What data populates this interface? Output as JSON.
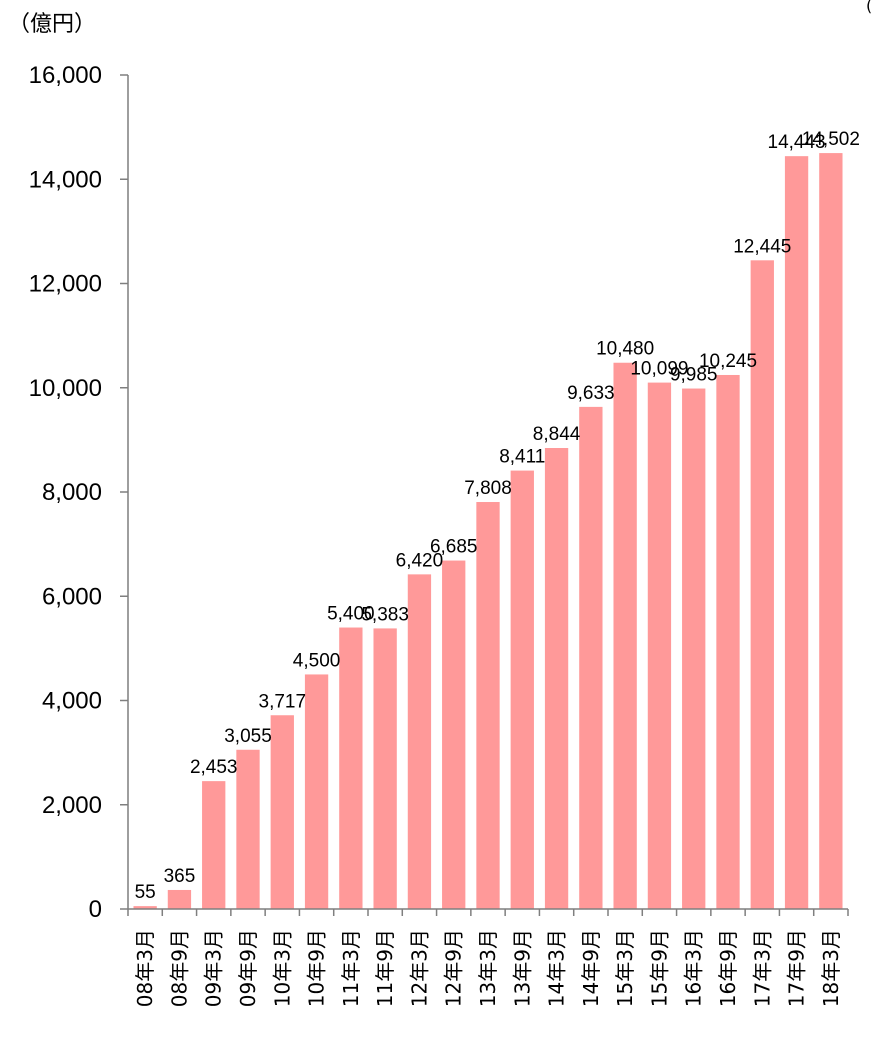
{
  "chart_data": {
    "type": "bar",
    "ylabel": "（億円）",
    "corner_mark": "(",
    "ylim": [
      0,
      16000
    ],
    "yticks": [
      0,
      2000,
      4000,
      6000,
      8000,
      10000,
      12000,
      14000,
      16000
    ],
    "ytick_labels": [
      "0",
      "2,000",
      "4,000",
      "6,000",
      "8,000",
      "10,000",
      "12,000",
      "14,000",
      "16,000"
    ],
    "categories": [
      "08年3月",
      "08年9月",
      "09年3月",
      "09年9月",
      "10年3月",
      "10年9月",
      "11年3月",
      "11年9月",
      "12年3月",
      "12年9月",
      "13年3月",
      "13年9月",
      "14年3月",
      "14年9月",
      "15年3月",
      "15年9月",
      "16年3月",
      "16年9月",
      "17年3月",
      "17年9月",
      "18年3月"
    ],
    "values": [
      55,
      365,
      2453,
      3055,
      3717,
      4500,
      5400,
      5383,
      6420,
      6685,
      7808,
      8411,
      8844,
      9633,
      10480,
      10099,
      9985,
      10245,
      12445,
      14443,
      14502
    ],
    "value_labels": [
      "55",
      "365",
      "2,453",
      "3,055",
      "3,717",
      "4,500",
      "5,400",
      "5,383",
      "6,420",
      "6,685",
      "7,808",
      "8,411",
      "8,844",
      "9,633",
      "10,480",
      "10,099",
      "9,985",
      "10,245",
      "12,445",
      "14,443",
      "14,502"
    ],
    "bar_color": "#ff9999",
    "axis_color": "#7f7f7f",
    "grid": false,
    "legend": "none"
  }
}
